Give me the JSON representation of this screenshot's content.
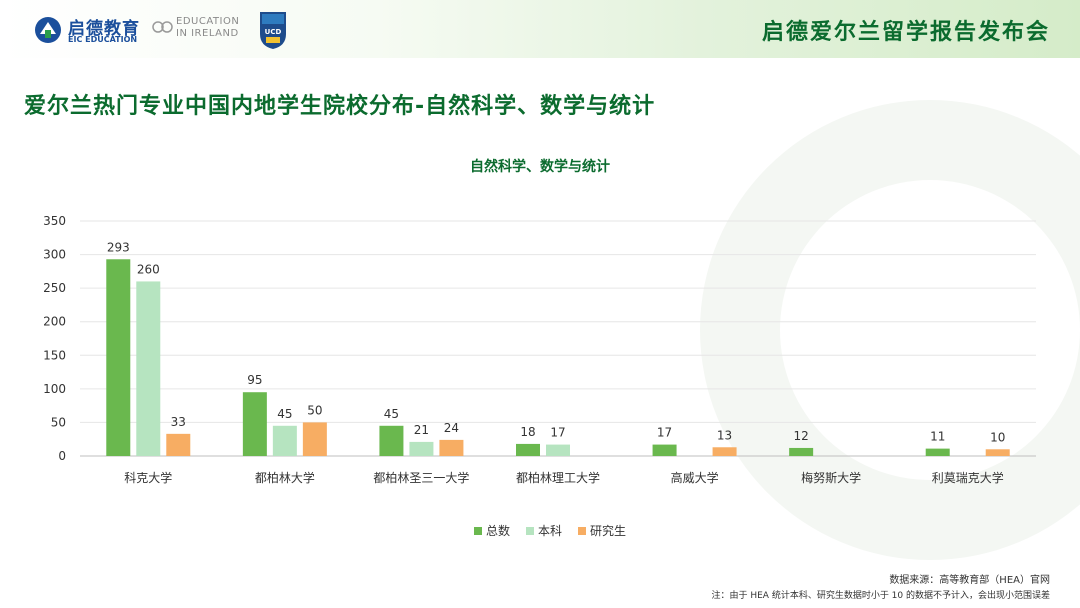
{
  "header": {
    "brand_name": "启德教育",
    "brand_sub": "EIC EDUCATION",
    "partner_line1": "EDUCATION",
    "partner_line2": "IN IRELAND",
    "ucd_label": "UCD",
    "event_title": "启德爱尔兰留学报告发布会"
  },
  "page_title": "爱尔兰热门专业中国内地学生院校分布-自然科学、数学与统计",
  "footer": {
    "source": "数据来源：高等教育部（HEA）官网",
    "note": "注：由于 HEA 统计本科、研究生数据时小于 10 的数据不予计入，会出现小范围误差"
  },
  "colors": {
    "accent": "#0b6b2e",
    "series_total": "#6ab84e",
    "series_ug": "#b6e4c0",
    "series_pg": "#f7ad63"
  },
  "chart_data": {
    "type": "bar",
    "title": "自然科学、数学与统计",
    "categories": [
      "科克大学",
      "都柏林大学",
      "都柏林圣三一大学",
      "都柏林理工大学",
      "高威大学",
      "梅努斯大学",
      "利莫瑞克大学"
    ],
    "series": [
      {
        "name": "总数",
        "values": [
          293,
          95,
          45,
          18,
          17,
          12,
          11
        ]
      },
      {
        "name": "本科",
        "values": [
          260,
          45,
          21,
          17,
          null,
          null,
          null
        ]
      },
      {
        "name": "研究生",
        "values": [
          33,
          50,
          24,
          null,
          13,
          null,
          10
        ]
      }
    ],
    "ylim": [
      0,
      350
    ],
    "yticks": [
      0,
      50,
      100,
      150,
      200,
      250,
      300,
      350
    ],
    "grid": true,
    "legend_position": "bottom"
  }
}
